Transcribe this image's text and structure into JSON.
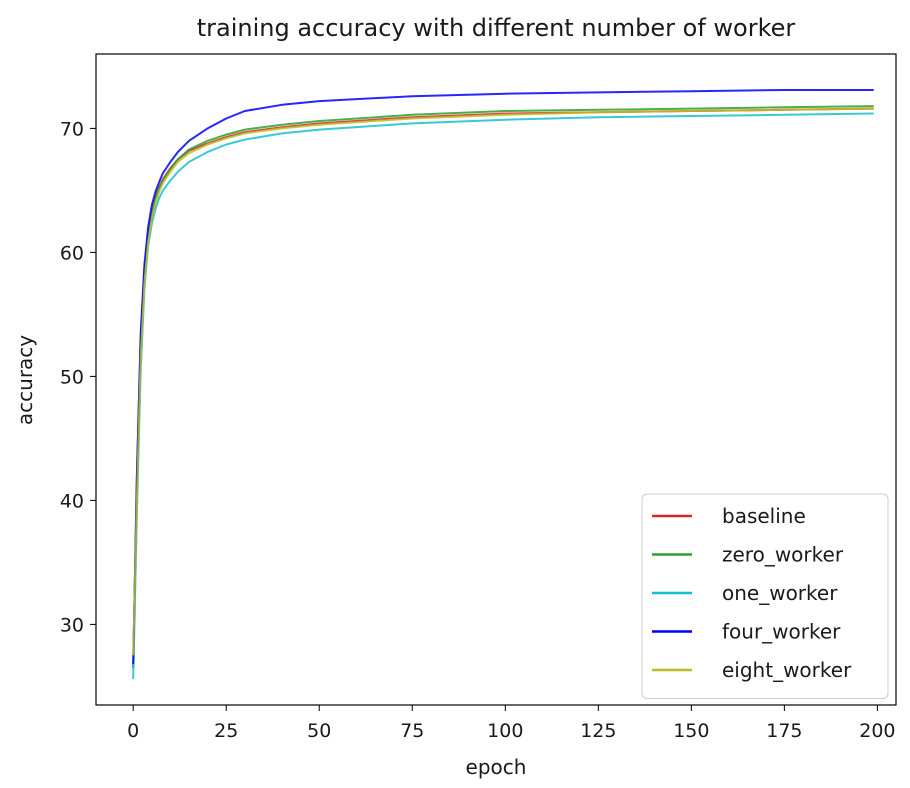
{
  "chart_data": {
    "type": "line",
    "title": "training accuracy with different number of worker",
    "xlabel": "epoch",
    "ylabel": "accuracy",
    "xlim": [
      -10,
      205
    ],
    "ylim": [
      23.5,
      76
    ],
    "xticks": [
      0,
      25,
      50,
      75,
      100,
      125,
      150,
      175,
      200
    ],
    "yticks": [
      30,
      40,
      50,
      60,
      70
    ],
    "grid": false,
    "legend_position": "lower-right",
    "x": [
      0,
      1,
      2,
      3,
      4,
      5,
      6,
      7,
      8,
      10,
      12,
      15,
      20,
      25,
      30,
      40,
      50,
      75,
      100,
      125,
      150,
      175,
      199
    ],
    "series": [
      {
        "name": "baseline",
        "color": "#d62728",
        "values": [
          26.5,
          42,
          53,
          58.5,
          61.5,
          63.3,
          64.5,
          65.3,
          65.9,
          66.8,
          67.5,
          68.2,
          68.8,
          69.3,
          69.7,
          70.1,
          70.4,
          70.9,
          71.2,
          71.3,
          71.4,
          71.5,
          71.6
        ]
      },
      {
        "name": "zero_worker",
        "color": "#2ca02c",
        "values": [
          26.5,
          41,
          52,
          58,
          61.2,
          63,
          64.3,
          65.2,
          65.8,
          66.7,
          67.5,
          68.3,
          69,
          69.5,
          69.9,
          70.3,
          70.6,
          71.1,
          71.4,
          71.5,
          71.6,
          71.7,
          71.8
        ]
      },
      {
        "name": "one_worker",
        "color": "#17becf",
        "values": [
          25.6,
          39,
          50.5,
          57,
          60.5,
          62.3,
          63.5,
          64.4,
          65,
          65.8,
          66.5,
          67.3,
          68.1,
          68.7,
          69.1,
          69.6,
          69.9,
          70.4,
          70.7,
          70.9,
          71,
          71.1,
          71.2
        ]
      },
      {
        "name": "four_worker",
        "color": "#0000ff",
        "values": [
          26.8,
          42,
          53.5,
          59,
          62,
          63.8,
          64.9,
          65.7,
          66.4,
          67.3,
          68.1,
          69,
          70,
          70.8,
          71.4,
          71.9,
          72.2,
          72.6,
          72.8,
          72.9,
          73,
          73.1,
          73.1
        ]
      },
      {
        "name": "eight_worker",
        "color": "#bcbd22",
        "values": [
          27.5,
          40,
          51.5,
          57.5,
          60.8,
          62.7,
          64,
          64.9,
          65.6,
          66.5,
          67.3,
          68,
          68.7,
          69.2,
          69.6,
          70,
          70.3,
          70.8,
          71.1,
          71.3,
          71.4,
          71.5,
          71.6
        ]
      }
    ]
  }
}
